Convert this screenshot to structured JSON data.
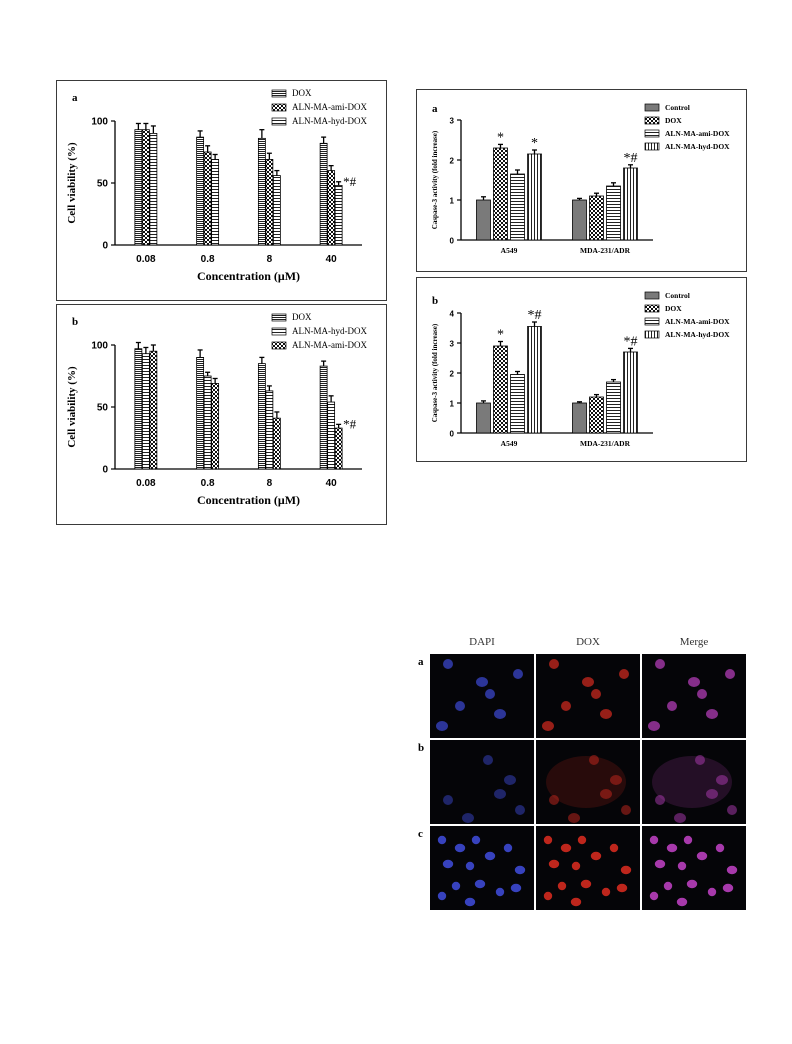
{
  "colors": {
    "frame": "#3a3a3a",
    "dapi": "#3a46c8",
    "dox": "#c8281e",
    "merge": "#b03cb4",
    "background": "#050508"
  },
  "chart_data": [
    {
      "id": "viability-a",
      "type": "bar",
      "panel_label": "a",
      "xlabel": "Concentration (μM)",
      "ylabel": "Cell viability (%)",
      "ylim": [
        0,
        100
      ],
      "yticks": [
        "0",
        "50",
        "100"
      ],
      "categories": [
        "0.08",
        "0.8",
        "8",
        "40"
      ],
      "legend_position": "top-right",
      "series": [
        {
          "name": "DOX",
          "pattern": "hlines-dense",
          "values": [
            93,
            87,
            86,
            82
          ],
          "errors": [
            5,
            5,
            7,
            5
          ]
        },
        {
          "name": "ALN-MA-ami-DOX",
          "pattern": "checker",
          "values": [
            93,
            75,
            69,
            60
          ],
          "errors": [
            5,
            5,
            5,
            4
          ]
        },
        {
          "name": "ALN-MA-hyd-DOX",
          "pattern": "hlines",
          "values": [
            90,
            69,
            56,
            48
          ],
          "errors": [
            6,
            4,
            4,
            3
          ]
        }
      ],
      "annotations": [
        {
          "category": "40",
          "text": "*#"
        }
      ]
    },
    {
      "id": "viability-b",
      "type": "bar",
      "panel_label": "b",
      "xlabel": "Concentration (μM)",
      "ylabel": "Cell viability (%)",
      "ylim": [
        0,
        100
      ],
      "yticks": [
        "0",
        "50",
        "100"
      ],
      "categories": [
        "0.08",
        "0.8",
        "8",
        "40"
      ],
      "legend_position": "top-right",
      "series": [
        {
          "name": "DOX",
          "pattern": "hlines-dense",
          "values": [
            97,
            90,
            85,
            83
          ],
          "errors": [
            5,
            6,
            5,
            4
          ]
        },
        {
          "name": "ALN-MA-hyd-DOX",
          "pattern": "hlines",
          "values": [
            93,
            75,
            63,
            54
          ],
          "errors": [
            5,
            3,
            4,
            5
          ]
        },
        {
          "name": "ALN-MA-ami-DOX",
          "pattern": "checker",
          "values": [
            95,
            69,
            41,
            33
          ],
          "errors": [
            5,
            4,
            5,
            3
          ]
        }
      ],
      "annotations": [
        {
          "category": "40",
          "text": "*#"
        }
      ]
    },
    {
      "id": "caspase-a",
      "type": "bar",
      "panel_label": "a",
      "xlabel": "",
      "ylabel": "Caspase-3 activity (fold increase)",
      "ylim": [
        0,
        3
      ],
      "yticks": [
        "0",
        "1",
        "2",
        "3"
      ],
      "categories": [
        "A549",
        "MDA-231/ADR"
      ],
      "legend_position": "top-right",
      "series": [
        {
          "name": "Control",
          "pattern": "solid-gray",
          "values": [
            1.0,
            1.0
          ],
          "errors": [
            0.08,
            0.04
          ]
        },
        {
          "name": "DOX",
          "pattern": "checker",
          "values": [
            2.3,
            1.1
          ],
          "errors": [
            0.09,
            0.07
          ]
        },
        {
          "name": "ALN-MA-ami-DOX",
          "pattern": "hlines",
          "values": [
            1.65,
            1.35
          ],
          "errors": [
            0.1,
            0.08
          ]
        },
        {
          "name": "ALN-MA-hyd-DOX",
          "pattern": "vlines",
          "values": [
            2.15,
            1.8
          ],
          "errors": [
            0.1,
            0.08
          ]
        }
      ],
      "annotations": [
        {
          "category": "A549",
          "series": 1,
          "text": "*"
        },
        {
          "category": "A549",
          "series": 3,
          "text": "*"
        },
        {
          "category": "MDA-231/ADR",
          "series": 3,
          "text": "*#"
        }
      ]
    },
    {
      "id": "caspase-b",
      "type": "bar",
      "panel_label": "b",
      "xlabel": "",
      "ylabel": "Caspase-3 activity (fold increase)",
      "ylim": [
        0,
        4
      ],
      "yticks": [
        "0",
        "1",
        "2",
        "3",
        "4"
      ],
      "categories": [
        "A549",
        "MDA-231/ADR"
      ],
      "legend_position": "top-right",
      "series": [
        {
          "name": "Control",
          "pattern": "solid-gray",
          "values": [
            1.0,
            1.0
          ],
          "errors": [
            0.07,
            0.04
          ]
        },
        {
          "name": "DOX",
          "pattern": "checker",
          "values": [
            2.9,
            1.2
          ],
          "errors": [
            0.15,
            0.08
          ]
        },
        {
          "name": "ALN-MA-ami-DOX",
          "pattern": "hlines",
          "values": [
            1.95,
            1.7
          ],
          "errors": [
            0.1,
            0.08
          ]
        },
        {
          "name": "ALN-MA-hyd-DOX",
          "pattern": "vlines",
          "values": [
            3.55,
            2.7
          ],
          "errors": [
            0.15,
            0.12
          ]
        }
      ],
      "annotations": [
        {
          "category": "A549",
          "series": 1,
          "text": "*"
        },
        {
          "category": "A549",
          "series": 3,
          "text": "*#"
        },
        {
          "category": "MDA-231/ADR",
          "series": 3,
          "text": "*#"
        }
      ]
    }
  ],
  "microscopy": {
    "columns": [
      "DAPI",
      "DOX",
      "Merge"
    ],
    "rows": [
      {
        "label": "a",
        "cells": "sparse"
      },
      {
        "label": "b",
        "cells": "dim"
      },
      {
        "label": "c",
        "cells": "dense"
      }
    ]
  }
}
